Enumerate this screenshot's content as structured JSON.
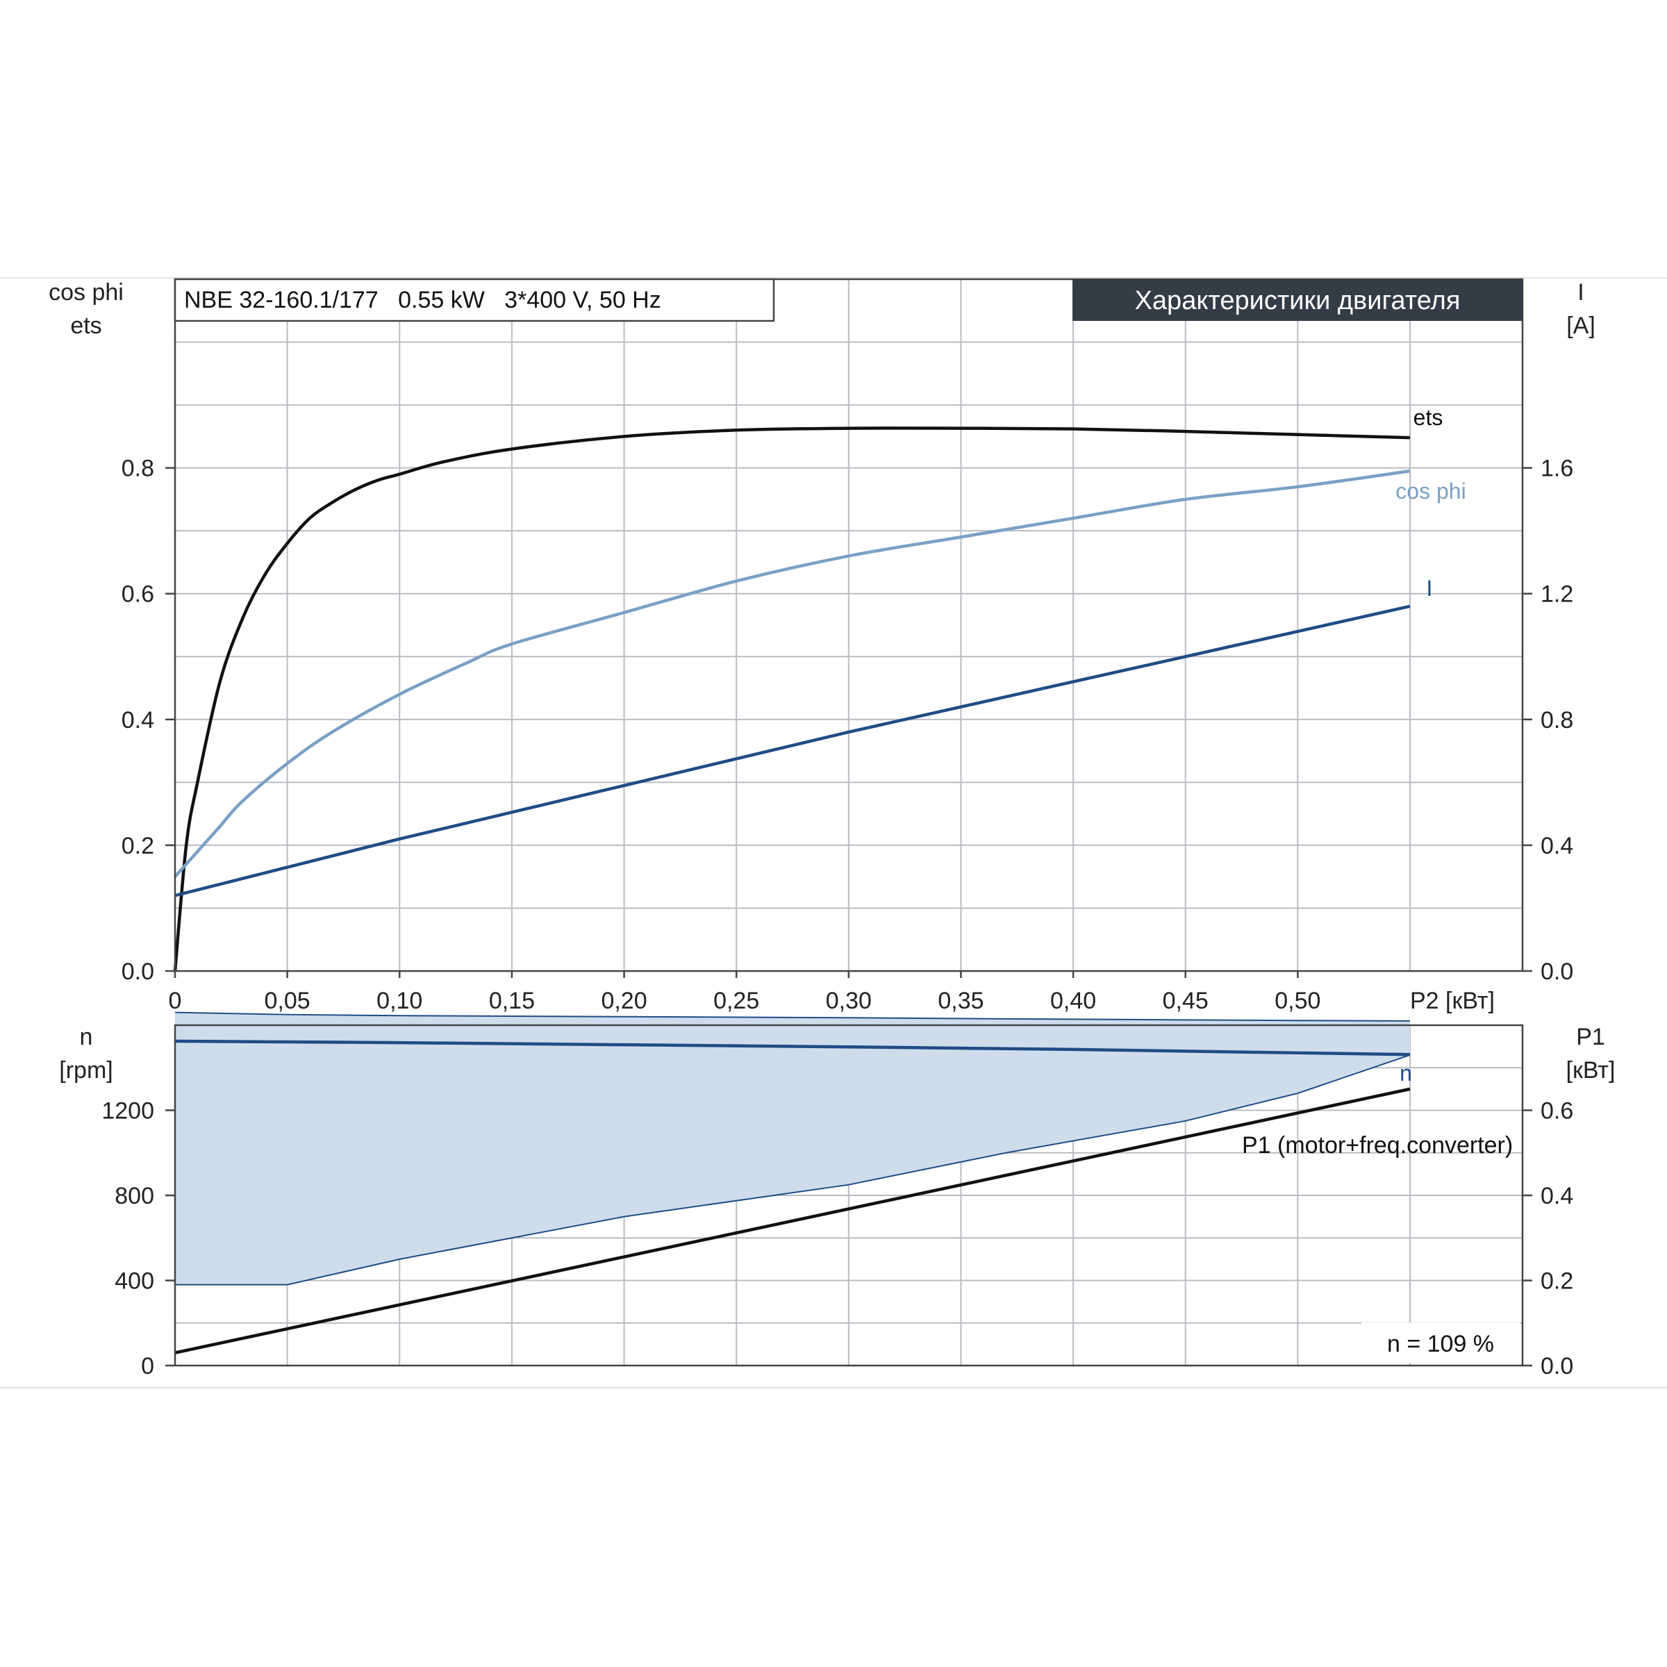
{
  "model_box": "NBE 32-160.1/177   0.55 kW   3*400 V, 50 Hz",
  "title_banner": "Характеристики двигателя",
  "speed_note": "n = 109 %",
  "colors": {
    "ets": "#111111",
    "cosphi": "#7aa0c4",
    "current": "#1f4c84",
    "speed": "#1f4c84",
    "p1": "#111111",
    "band_fill": "#cfdcec",
    "banner_bg": "#333d48"
  },
  "chart_data": [
    {
      "type": "line",
      "x_axis": {
        "label": "P2 [кВт]",
        "range": [
          0,
          0.55
        ],
        "tick_values": [
          0,
          0.05,
          0.1,
          0.15,
          0.2,
          0.25,
          0.3,
          0.35,
          0.4,
          0.45,
          0.5
        ],
        "tick_labels": [
          "0",
          "0,05",
          "0,10",
          "0,15",
          "0,20",
          "0,25",
          "0,30",
          "0,35",
          "0,40",
          "0,45",
          "0,50"
        ]
      },
      "y_left": {
        "label_line1": "cos phi",
        "label_line2": "ets",
        "range": [
          0,
          1.1
        ],
        "tick_values": [
          0,
          0.2,
          0.4,
          0.6,
          0.8
        ],
        "tick_labels": [
          "0.0",
          "0.2",
          "0.4",
          "0.6",
          "0.8"
        ]
      },
      "y_right": {
        "label_line1": "I",
        "label_line2": "[A]",
        "range": [
          0,
          2.2
        ],
        "tick_values": [
          0,
          0.4,
          0.8,
          1.2,
          1.6
        ],
        "tick_labels": [
          "0.0",
          "0.4",
          "0.8",
          "1.2",
          "1.6"
        ]
      },
      "grid": true,
      "series": [
        {
          "name": "ets",
          "axis": "left",
          "x": [
            0,
            0.005,
            0.01,
            0.02,
            0.03,
            0.04,
            0.05,
            0.06,
            0.07,
            0.08,
            0.09,
            0.1,
            0.12,
            0.15,
            0.2,
            0.25,
            0.3,
            0.35,
            0.4,
            0.45,
            0.5,
            0.55
          ],
          "y": [
            0,
            0.2,
            0.3,
            0.46,
            0.56,
            0.63,
            0.68,
            0.72,
            0.745,
            0.765,
            0.78,
            0.79,
            0.81,
            0.83,
            0.85,
            0.86,
            0.863,
            0.863,
            0.862,
            0.858,
            0.853,
            0.848
          ]
        },
        {
          "name": "cos phi",
          "axis": "left",
          "x": [
            0,
            0.01,
            0.02,
            0.03,
            0.05,
            0.07,
            0.1,
            0.13,
            0.15,
            0.2,
            0.25,
            0.3,
            0.35,
            0.4,
            0.45,
            0.5,
            0.55
          ],
          "y": [
            0.15,
            0.19,
            0.23,
            0.27,
            0.33,
            0.38,
            0.44,
            0.49,
            0.52,
            0.57,
            0.62,
            0.66,
            0.69,
            0.72,
            0.75,
            0.77,
            0.795
          ]
        },
        {
          "name": "I",
          "axis": "right",
          "x": [
            0,
            0.1,
            0.2,
            0.3,
            0.4,
            0.5,
            0.55
          ],
          "y": [
            0.24,
            0.42,
            0.59,
            0.76,
            0.92,
            1.08,
            1.16
          ]
        }
      ]
    },
    {
      "type": "line",
      "x_range": [
        0,
        0.55
      ],
      "y_left": {
        "label_line1": "n",
        "label_line2": "[rpm]",
        "range": [
          0,
          1600
        ],
        "tick_values": [
          0,
          400,
          800,
          1200
        ],
        "tick_labels": [
          "0",
          "400",
          "800",
          "1200"
        ]
      },
      "y_right": {
        "label_line1": "P1",
        "label_line2": "[кВт]",
        "range": [
          0,
          0.8
        ],
        "tick_values": [
          0,
          0.2,
          0.4,
          0.6
        ],
        "tick_labels": [
          "0.0",
          "0.2",
          "0.4",
          "0.6"
        ]
      },
      "grid": true,
      "band": {
        "x": [
          0,
          0.05,
          0.1,
          0.2,
          0.3,
          0.37,
          0.45,
          0.5,
          0.55
        ],
        "upper": [
          1660,
          1650,
          1645,
          1640,
          1635,
          1630,
          1625,
          1622,
          1620
        ],
        "lower": [
          380,
          380,
          500,
          700,
          850,
          1000,
          1150,
          1280,
          1460
        ]
      },
      "series": [
        {
          "name": "n",
          "axis": "left",
          "x": [
            0,
            0.1,
            0.2,
            0.3,
            0.4,
            0.5,
            0.55
          ],
          "y": [
            1525,
            1518,
            1508,
            1498,
            1486,
            1470,
            1462
          ]
        },
        {
          "name": "P1 (motor+freq.converter)",
          "axis": "right",
          "x": [
            0,
            0.55
          ],
          "y": [
            0.03,
            0.65
          ]
        }
      ]
    }
  ]
}
